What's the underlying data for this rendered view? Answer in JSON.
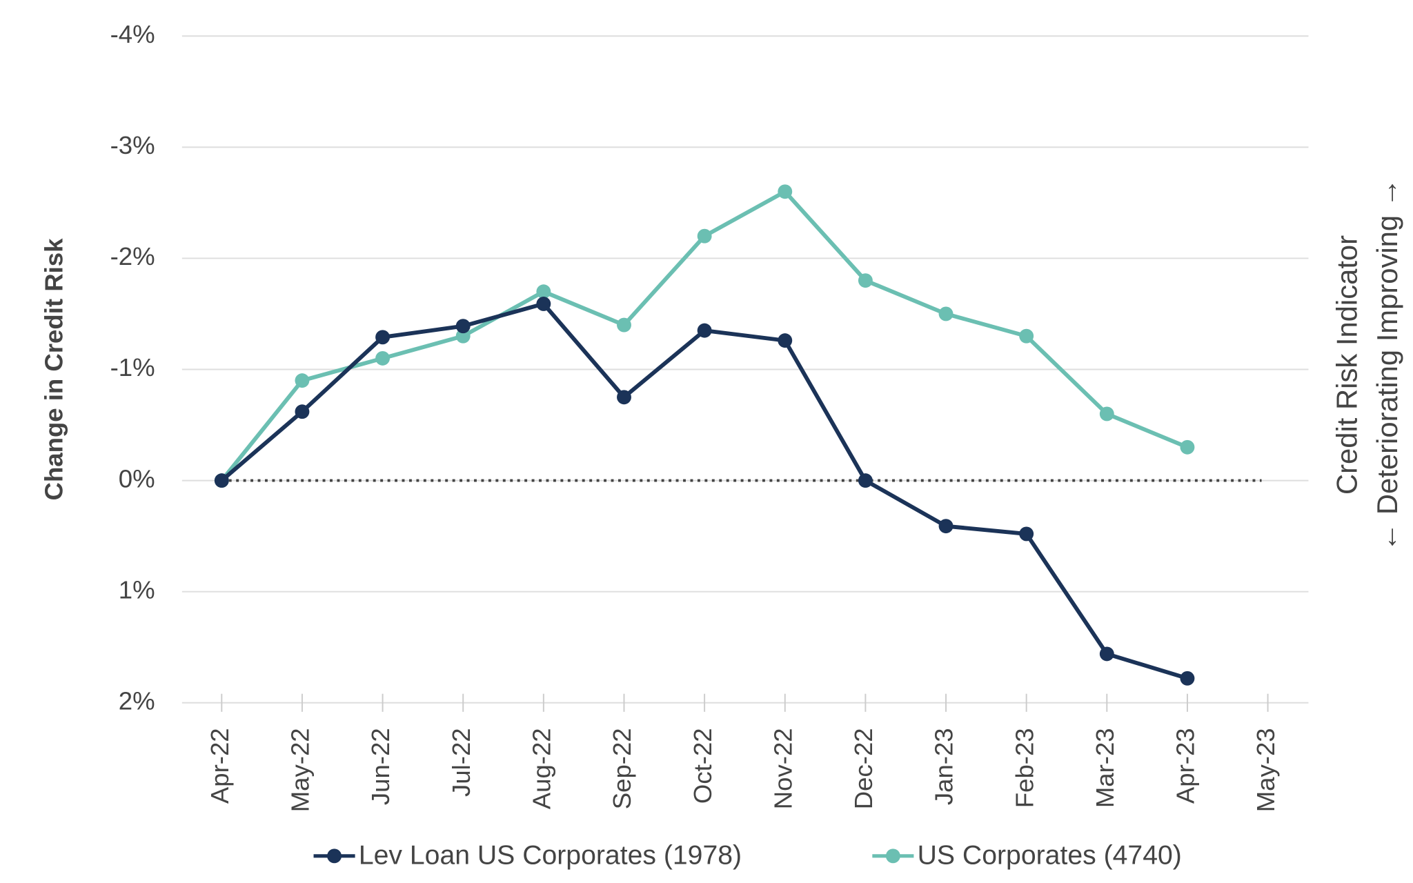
{
  "chart_data": {
    "type": "line",
    "y_label": "Change in Credit Risk",
    "y2_label": [
      "Credit Risk Indicator",
      "← Deteriorating Improving →"
    ],
    "categories": [
      "Apr-22",
      "May-22",
      "Jun-22",
      "Jul-22",
      "Aug-22",
      "Sep-22",
      "Oct-22",
      "Nov-22",
      "Dec-22",
      "Jan-23",
      "Feb-23",
      "Mar-23",
      "Apr-23",
      "May-23"
    ],
    "series": [
      {
        "name": "Lev Loan US Corporates (1978)",
        "color": "#1b3358",
        "values": [
          0,
          -0.62,
          -1.29,
          -1.39,
          -1.59,
          -0.75,
          -1.35,
          -1.26,
          0,
          0.41,
          0.48,
          1.56,
          1.78,
          null
        ]
      },
      {
        "name": "US Corporates (4740)",
        "color": "#6bbfb2",
        "values": [
          0,
          -0.9,
          -1.1,
          -1.3,
          -1.7,
          -1.4,
          -2.2,
          -2.6,
          -1.8,
          -1.5,
          -1.3,
          -0.6,
          -0.3,
          null
        ]
      }
    ],
    "ylim": [
      2,
      -4
    ],
    "yticks": [
      {
        "value": -4,
        "label": "-4%"
      },
      {
        "value": -3,
        "label": "-3%"
      },
      {
        "value": -2,
        "label": "-2%"
      },
      {
        "value": -1,
        "label": "-1%"
      },
      {
        "value": 0,
        "label": "0%"
      },
      {
        "value": 1,
        "label": "1%"
      },
      {
        "value": 2,
        "label": "2%"
      }
    ],
    "ytick_colors": {
      "negative": "#2e9a6a",
      "zero": "#222222",
      "positive": "#e31010"
    },
    "reference_line": {
      "value": 0,
      "style": "dotted"
    },
    "grid": true,
    "legend": "bottom"
  }
}
